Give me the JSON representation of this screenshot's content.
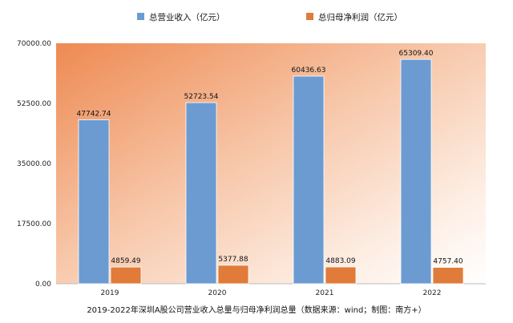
{
  "chart_data": {
    "type": "bar",
    "title": "",
    "xlabel": "",
    "ylabel": "",
    "categories": [
      "2019",
      "2020",
      "2021",
      "2022"
    ],
    "series": [
      {
        "name": "总营业收入（亿元）",
        "color": "#6b9bd1",
        "values": [
          47742.74,
          52723.54,
          60436.63,
          65309.4
        ]
      },
      {
        "name": "总归母净利润（亿元）",
        "color": "#e07b39",
        "values": [
          4859.49,
          5377.88,
          4883.09,
          4757.4
        ]
      }
    ],
    "data_labels": [
      [
        "47742.74",
        "52723.54",
        "60436.63",
        "65309.40"
      ],
      [
        "4859.49",
        "5377.88",
        "4883.09",
        "4757.40"
      ]
    ],
    "y_ticks": [
      "0.00",
      "17500.00",
      "35000.00",
      "52500.00",
      "70000.00"
    ],
    "ylim": [
      0,
      70000
    ],
    "legend_position": "top",
    "grid": false,
    "plot_background": "orange-to-white gradient"
  },
  "caption": "2019-2022年深圳A股公司营业收入总量与归母净利润总量（数据来源：wind；制图：南方+）"
}
